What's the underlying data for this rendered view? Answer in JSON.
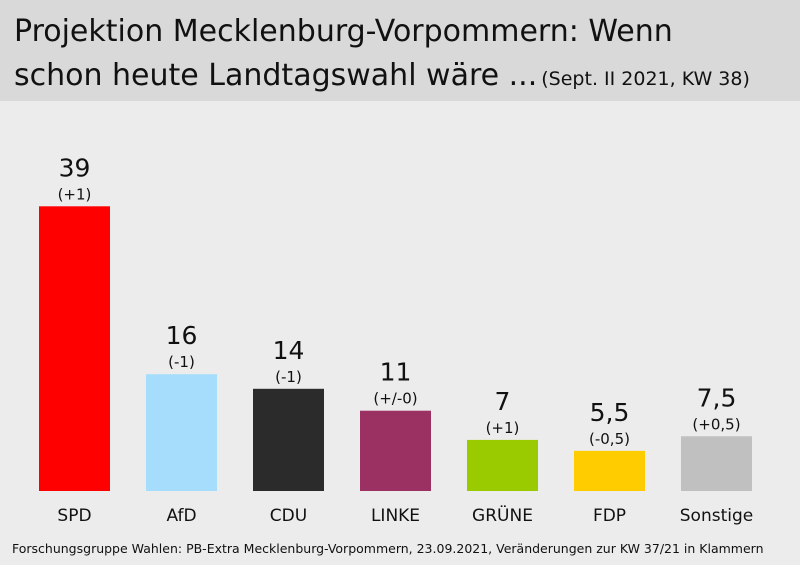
{
  "header": {
    "title_line1": "Projektion Mecklenburg-Vorpommern: Wenn",
    "title_line2": "schon heute Landtagswahl wäre ...",
    "subtitle": "(Sept. II 2021, KW 38)"
  },
  "chart_data": {
    "type": "bar",
    "categories": [
      "SPD",
      "AfD",
      "CDU",
      "LINKE",
      "GRÜNE",
      "FDP",
      "Sonstige"
    ],
    "values": [
      39,
      16,
      14,
      11,
      7,
      5.5,
      7.5
    ],
    "value_labels": [
      "39",
      "16",
      "14",
      "11",
      "7",
      "5,5",
      "7,5"
    ],
    "changes": [
      "(+1)",
      "(-1)",
      "(-1)",
      "(+/-0)",
      "(+1)",
      "(-0,5)",
      "(+0,5)"
    ],
    "colors": [
      "#ff0000",
      "#a6dcfc",
      "#2b2b2b",
      "#9a3162",
      "#9acb00",
      "#ffcc00",
      "#c0c0c0"
    ],
    "ylim": [
      0,
      40
    ]
  },
  "source": "Forschungsgruppe Wahlen: PB-Extra Mecklenburg-Vorpommern, 23.09.2021, Veränderungen zur KW 37/21 in Klammern"
}
